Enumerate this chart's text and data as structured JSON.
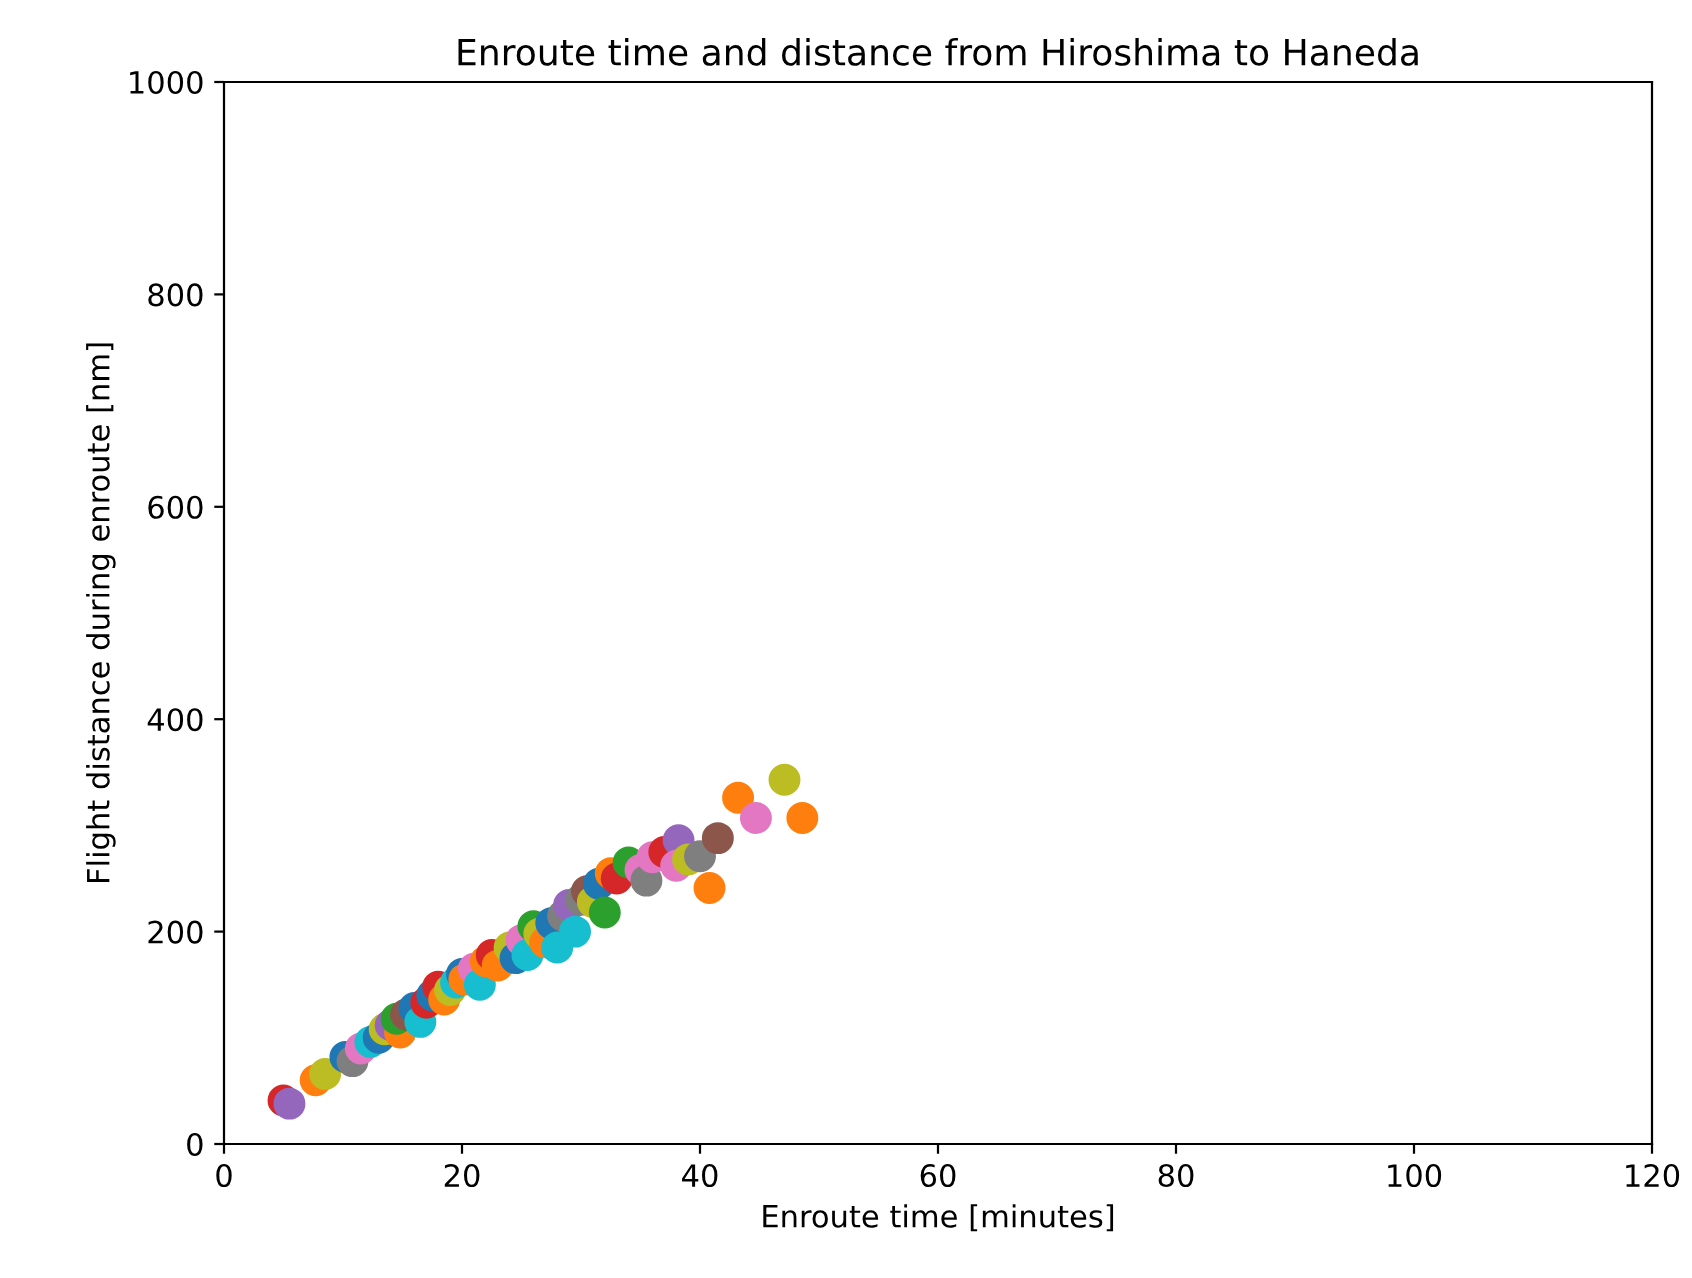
{
  "chart_data": {
    "type": "scatter",
    "title": "Enroute time and distance from Hiroshima to Haneda",
    "xlabel": "Enroute time [minutes]",
    "ylabel": "Flight distance during enroute [nm]",
    "xlim": [
      0,
      120
    ],
    "xticks": [
      0,
      20,
      40,
      60,
      80,
      100,
      120
    ],
    "ylim": [
      0,
      1000
    ],
    "yticks": [
      0,
      200,
      400,
      600,
      800,
      1000
    ],
    "grid": false,
    "legend": false,
    "marker": "circle",
    "series": [
      {
        "x": [
          5.0,
          5.5,
          7.7,
          8.5,
          10.2,
          10.8,
          11.5,
          12.3,
          13.0,
          13.5,
          14.0,
          14.8,
          14.5,
          15.3,
          16.0,
          16.5,
          17.0,
          17.5,
          18.0,
          18.5,
          19.0,
          19.5,
          20.0,
          20.2,
          21.0,
          21.5,
          22.0,
          22.5,
          23.0,
          24.0,
          24.5,
          25.0,
          25.5,
          26.0,
          26.5,
          27.0,
          27.5,
          28.0,
          28.5,
          29.0,
          29.5,
          30.0,
          30.5,
          31.0,
          31.5,
          32.0,
          32.5,
          33.0,
          34.0,
          35.0,
          35.5,
          36.0,
          37.0,
          38.2,
          38.0,
          39.0,
          40.0,
          40.8,
          41.5,
          43.2,
          44.7,
          47.1,
          48.6
        ],
        "values": [
          41,
          38,
          60,
          66,
          82,
          78,
          90,
          96,
          100,
          108,
          112,
          105,
          118,
          122,
          128,
          115,
          133,
          140,
          148,
          136,
          145,
          152,
          160,
          155,
          165,
          150,
          172,
          178,
          168,
          185,
          175,
          192,
          178,
          205,
          198,
          190,
          208,
          185,
          215,
          225,
          200,
          230,
          238,
          228,
          245,
          218,
          255,
          250,
          265,
          258,
          248,
          270,
          275,
          286,
          262,
          268,
          271,
          241,
          288,
          326,
          307,
          343,
          307
        ],
        "colors": [
          "#d62728",
          "#9467bd",
          "#ff7f0e",
          "#bcbd22",
          "#1f77b4",
          "#7f7f7f",
          "#e377c2",
          "#17becf",
          "#1f77b4",
          "#bcbd22",
          "#9467bd",
          "#ff7f0e",
          "#2ca02c",
          "#8c564b",
          "#1f77b4",
          "#17becf",
          "#d62728",
          "#1f77b4",
          "#d62728",
          "#ff7f0e",
          "#bcbd22",
          "#17becf",
          "#1f77b4",
          "#ff7f0e",
          "#e377c2",
          "#17becf",
          "#ff7f0e",
          "#d62728",
          "#ff7f0e",
          "#bcbd22",
          "#1f77b4",
          "#e377c2",
          "#17becf",
          "#2ca02c",
          "#bcbd22",
          "#ff7f0e",
          "#1f77b4",
          "#17becf",
          "#7f7f7f",
          "#9467bd",
          "#17becf",
          "#7f7f7f",
          "#8c564b",
          "#bcbd22",
          "#1f77b4",
          "#2ca02c",
          "#ff7f0e",
          "#d62728",
          "#2ca02c",
          "#e377c2",
          "#7f7f7f",
          "#e377c2",
          "#d62728",
          "#9467bd",
          "#e377c2",
          "#bcbd22",
          "#7f7f7f",
          "#ff7f0e",
          "#8c564b",
          "#ff7f0e",
          "#e377c2",
          "#bcbd22",
          "#ff7f0e"
        ]
      }
    ]
  }
}
